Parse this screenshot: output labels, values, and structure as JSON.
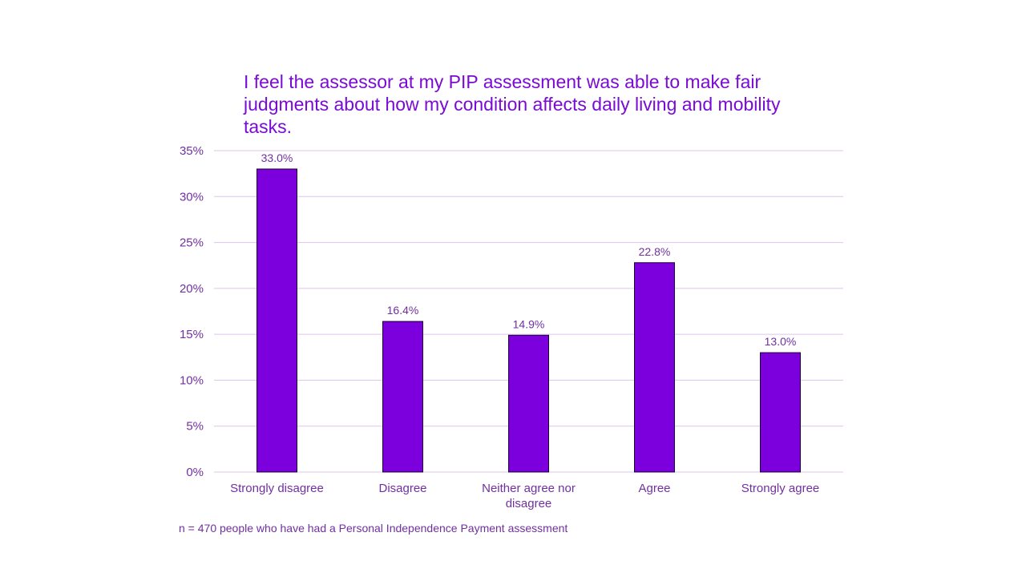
{
  "chart_data": {
    "type": "bar",
    "title": "I feel the assessor at my PIP assessment was able to make fair judgments about how my condition affects daily living and mobility tasks.",
    "categories": [
      "Strongly disagree",
      "Disagree",
      "Neither agree nor disagree",
      "Agree",
      "Strongly agree"
    ],
    "values": [
      33.0,
      16.4,
      14.9,
      22.8,
      13.0
    ],
    "data_labels": [
      "33.0%",
      "16.4%",
      "14.9%",
      "22.8%",
      "13.0%"
    ],
    "ylim": [
      0,
      35
    ],
    "yticks": [
      "0%",
      "5%",
      "10%",
      "15%",
      "20%",
      "25%",
      "30%",
      "35%"
    ],
    "xlabel": "",
    "ylabel": "",
    "grid": true,
    "legend": "none",
    "colors": {
      "bar": "#7b00dd",
      "text": "#7030a0",
      "title": "#7a0ad6",
      "grid": "#dcc6ea"
    }
  },
  "note": "n = 470 people who have had a Personal Independence Payment assessment"
}
